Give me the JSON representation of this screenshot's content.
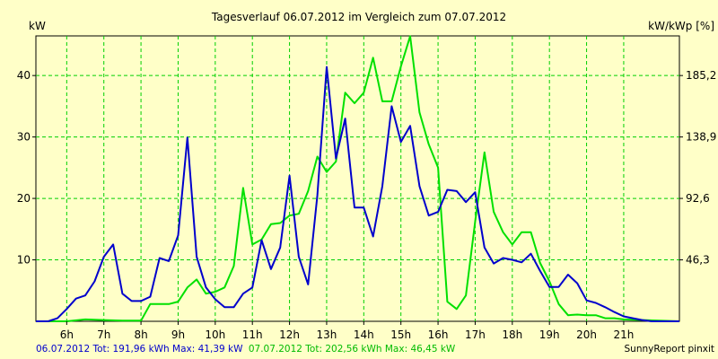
{
  "chart_data": {
    "type": "line",
    "title": "Tagesverlauf 06.07.2012 im Vergleich zum 07.07.2012",
    "ylabel_left": "kW",
    "ylabel_right": "kW/kWp [%]",
    "x_unit": "hour",
    "xlim": [
      5.17,
      22.5
    ],
    "ylim": [
      0,
      46.45
    ],
    "x_tick_labels": [
      "6h",
      "7h",
      "8h",
      "9h",
      "10h",
      "11h",
      "12h",
      "13h",
      "14h",
      "15h",
      "16h",
      "17h",
      "18h",
      "19h",
      "20h",
      "21h"
    ],
    "x_tick_values": [
      6,
      7,
      8,
      9,
      10,
      11,
      12,
      13,
      14,
      15,
      16,
      17,
      18,
      19,
      20,
      21
    ],
    "y_ticks_left": [
      10,
      20,
      30,
      40
    ],
    "y_ticks_right_labels": [
      "46,3",
      "92,6",
      "138,9",
      "185,2"
    ],
    "y_ticks_right_values": [
      10,
      20,
      30,
      40
    ],
    "grid": true,
    "colors": {
      "background": "#ffffc8",
      "grid": "#00d000",
      "series_1": "#0000cc",
      "series_2": "#00e000",
      "footer_1": "#0000cc",
      "footer_2": "#00bb00"
    },
    "series": [
      {
        "name": "06.07.2012",
        "values": [
          [
            5.17,
            0
          ],
          [
            5.5,
            0
          ],
          [
            5.75,
            0.5
          ],
          [
            6,
            2
          ],
          [
            6.25,
            3.7
          ],
          [
            6.5,
            4.2
          ],
          [
            6.75,
            6.5
          ],
          [
            7,
            10.5
          ],
          [
            7.25,
            12.5
          ],
          [
            7.5,
            4.5
          ],
          [
            7.75,
            3.3
          ],
          [
            8,
            3.3
          ],
          [
            8.25,
            4
          ],
          [
            8.5,
            10.3
          ],
          [
            8.75,
            9.8
          ],
          [
            9,
            14
          ],
          [
            9.25,
            29.9
          ],
          [
            9.5,
            10.5
          ],
          [
            9.75,
            5.5
          ],
          [
            10,
            3.6
          ],
          [
            10.25,
            2.3
          ],
          [
            10.5,
            2.3
          ],
          [
            10.75,
            4.5
          ],
          [
            11,
            5.5
          ],
          [
            11.25,
            13.2
          ],
          [
            11.5,
            8.5
          ],
          [
            11.75,
            12
          ],
          [
            12,
            23.7
          ],
          [
            12.25,
            10.5
          ],
          [
            12.5,
            6
          ],
          [
            12.75,
            20.5
          ],
          [
            13,
            41.4
          ],
          [
            13.25,
            26.5
          ],
          [
            13.5,
            33
          ],
          [
            13.75,
            18.5
          ],
          [
            14,
            18.5
          ],
          [
            14.25,
            13.8
          ],
          [
            14.5,
            22
          ],
          [
            14.75,
            35
          ],
          [
            15,
            29.2
          ],
          [
            15.25,
            31.8
          ],
          [
            15.5,
            22
          ],
          [
            15.75,
            17.2
          ],
          [
            16,
            17.8
          ],
          [
            16.25,
            21.4
          ],
          [
            16.5,
            21.2
          ],
          [
            16.75,
            19.4
          ],
          [
            17,
            21
          ],
          [
            17.25,
            12
          ],
          [
            17.5,
            9.4
          ],
          [
            17.75,
            10.3
          ],
          [
            18,
            10
          ],
          [
            18.25,
            9.6
          ],
          [
            18.5,
            11
          ],
          [
            18.75,
            8.2
          ],
          [
            19,
            5.6
          ],
          [
            19.25,
            5.6
          ],
          [
            19.5,
            7.6
          ],
          [
            19.75,
            6.2
          ],
          [
            20,
            3.4
          ],
          [
            20.25,
            3
          ],
          [
            20.5,
            2.3
          ],
          [
            20.75,
            1.5
          ],
          [
            21,
            0.8
          ],
          [
            21.25,
            0.5
          ],
          [
            21.5,
            0.2
          ],
          [
            21.75,
            0
          ],
          [
            22.5,
            0
          ]
        ]
      },
      {
        "name": "07.07.2012",
        "values": [
          [
            5.17,
            0
          ],
          [
            6,
            0
          ],
          [
            6.5,
            0.3
          ],
          [
            7,
            0.2
          ],
          [
            7.5,
            0.1
          ],
          [
            8,
            0.1
          ],
          [
            8.25,
            2.8
          ],
          [
            8.5,
            2.8
          ],
          [
            8.75,
            2.8
          ],
          [
            9,
            3.2
          ],
          [
            9.25,
            5.5
          ],
          [
            9.5,
            6.8
          ],
          [
            9.75,
            4.5
          ],
          [
            10,
            4.8
          ],
          [
            10.25,
            5.5
          ],
          [
            10.5,
            9
          ],
          [
            10.75,
            21.7
          ],
          [
            11,
            12.5
          ],
          [
            11.25,
            13.3
          ],
          [
            11.5,
            15.8
          ],
          [
            11.75,
            16
          ],
          [
            12,
            17.2
          ],
          [
            12.25,
            17.5
          ],
          [
            12.5,
            21.2
          ],
          [
            12.75,
            26.8
          ],
          [
            13,
            24.3
          ],
          [
            13.25,
            26
          ],
          [
            13.5,
            37.2
          ],
          [
            13.75,
            35.5
          ],
          [
            14,
            37.2
          ],
          [
            14.25,
            42.9
          ],
          [
            14.5,
            35.8
          ],
          [
            14.75,
            35.8
          ],
          [
            15,
            41.5
          ],
          [
            15.25,
            46.4
          ],
          [
            15.5,
            34
          ],
          [
            15.75,
            28.8
          ],
          [
            16,
            25
          ],
          [
            16.25,
            3.2
          ],
          [
            16.5,
            2
          ],
          [
            16.75,
            4.2
          ],
          [
            17,
            16.2
          ],
          [
            17.25,
            27.5
          ],
          [
            17.5,
            17.8
          ],
          [
            17.75,
            14.5
          ],
          [
            18,
            12.5
          ],
          [
            18.25,
            14.5
          ],
          [
            18.5,
            14.5
          ],
          [
            18.75,
            9.5
          ],
          [
            19,
            6.5
          ],
          [
            19.25,
            2.8
          ],
          [
            19.5,
            1
          ],
          [
            19.75,
            1.1
          ],
          [
            20,
            1
          ],
          [
            20.25,
            1
          ],
          [
            20.5,
            0.5
          ],
          [
            20.75,
            0.5
          ],
          [
            21,
            0.3
          ],
          [
            21.5,
            0.2
          ],
          [
            22.5,
            0
          ]
        ]
      }
    ]
  },
  "footer": {
    "s1_text": "06.07.2012 Tot: 191,96 kWh Max: 41,39 kW",
    "s2_text": "07.07.2012 Tot: 202,56 kWh Max: 46,45 kW",
    "credit": "SunnyReport pinxit"
  }
}
